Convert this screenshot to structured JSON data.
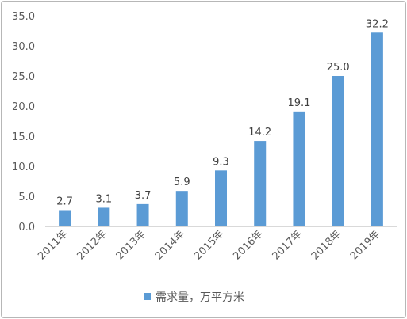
{
  "chart_data": {
    "type": "bar",
    "categories": [
      "2011年",
      "2012年",
      "2013年",
      "2014年",
      "2015年",
      "2016年",
      "2017年",
      "2018年",
      "2019年"
    ],
    "series": [
      {
        "name": "需求量，万平方米",
        "values": [
          2.7,
          3.1,
          3.7,
          5.9,
          9.3,
          14.2,
          19.1,
          25.0,
          32.2
        ]
      }
    ],
    "data_labels": [
      "2.7",
      "3.1",
      "3.7",
      "5.9",
      "9.3",
      "14.2",
      "19.1",
      "25.0",
      "32.2"
    ],
    "y_ticks": [
      "0.0",
      "5.0",
      "10.0",
      "15.0",
      "20.0",
      "25.0",
      "30.0",
      "35.0"
    ],
    "ylim": [
      0,
      35
    ],
    "legend_position": "bottom",
    "grid": false,
    "bar_color": "#5b9bd5"
  }
}
